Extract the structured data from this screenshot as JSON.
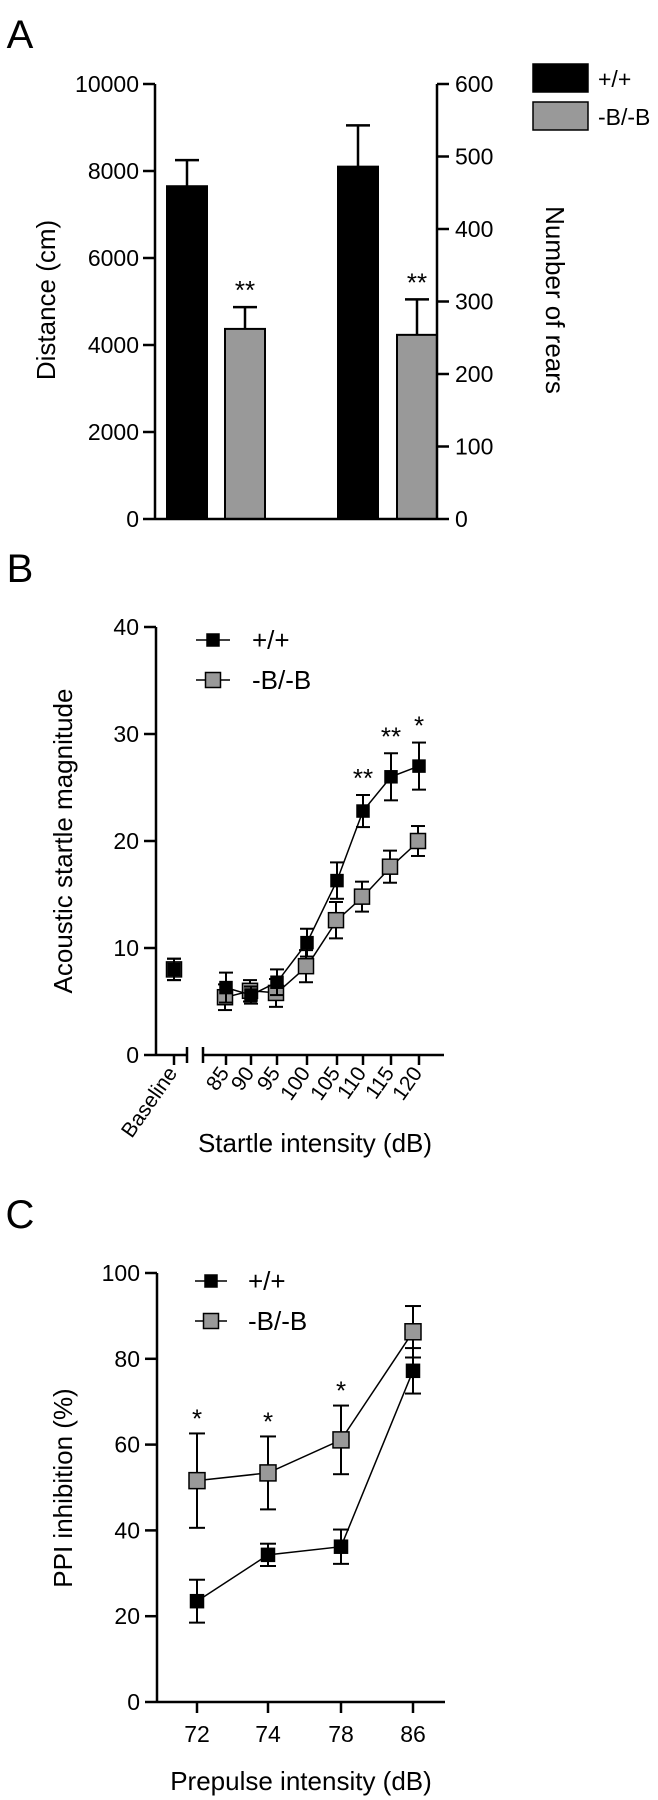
{
  "chart_data": [
    {
      "panel_label": "A",
      "type": "bar",
      "legend": [
        {
          "name": "+/+",
          "color": "#000000"
        },
        {
          "name": "-B/-B",
          "color": "#999999"
        }
      ],
      "left_axis": {
        "label": "Distance (cm)",
        "ylim": [
          0,
          10000
        ],
        "ticks": [
          "0",
          "2000",
          "4000",
          "6000",
          "8000",
          "10000"
        ]
      },
      "right_axis": {
        "label": "Number of rears",
        "ylim": [
          0,
          600
        ],
        "ticks": [
          "0",
          "100",
          "200",
          "300",
          "400",
          "500",
          "600"
        ]
      },
      "bars": [
        {
          "series": "+/+",
          "measure": "distance",
          "value": 7650,
          "error": 600,
          "sig": ""
        },
        {
          "series": "-B/-B",
          "measure": "distance",
          "value": 4370,
          "error": 500,
          "sig": "**"
        },
        {
          "series": "+/+",
          "measure": "rears",
          "value": 486,
          "error": 57,
          "sig": ""
        },
        {
          "series": "-B/-B",
          "measure": "rears",
          "value": 254,
          "error": 49,
          "sig": "**"
        }
      ]
    },
    {
      "panel_label": "B",
      "type": "line",
      "xlabel": "Startle intensity (dB)",
      "ylabel": "Acoustic startle magnitude",
      "ylim": [
        0,
        40
      ],
      "yticks": [
        "0",
        "10",
        "20",
        "30",
        "40"
      ],
      "baseline_label": "Baseline",
      "x": [
        "85",
        "90",
        "95",
        "100",
        "105",
        "110",
        "115",
        "120"
      ],
      "baseline": [
        {
          "series": "+/+",
          "value": 8.0,
          "error": 1.0
        },
        {
          "series": "-B/-B",
          "value": 8.0,
          "error": 1.0
        }
      ],
      "series": [
        {
          "name": "+/+",
          "marker": "filled-square",
          "color": "#000000",
          "values": [
            6.3,
            5.6,
            6.8,
            10.5,
            16.3,
            22.8,
            26.0,
            27.0
          ],
          "errors": [
            1.4,
            0.8,
            1.2,
            1.3,
            1.7,
            1.5,
            2.2,
            2.2
          ]
        },
        {
          "name": "-B/-B",
          "marker": "grey-square",
          "color": "#999999",
          "values": [
            5.4,
            6.0,
            5.8,
            8.3,
            12.6,
            14.8,
            17.6,
            20.0
          ],
          "errors": [
            1.2,
            1.0,
            1.3,
            1.5,
            1.7,
            1.4,
            1.5,
            1.4
          ]
        }
      ],
      "significance": [
        {
          "x": "110",
          "text": "**"
        },
        {
          "x": "115",
          "text": "**"
        },
        {
          "x": "120",
          "text": "*"
        }
      ]
    },
    {
      "panel_label": "C",
      "type": "line",
      "xlabel": "Prepulse intensity (dB)",
      "ylabel": "PPI inhibition (%)",
      "ylim": [
        0,
        100
      ],
      "yticks": [
        "0",
        "20",
        "40",
        "60",
        "80",
        "100"
      ],
      "x": [
        "72",
        "74",
        "78",
        "86"
      ],
      "series": [
        {
          "name": "+/+",
          "marker": "filled-square",
          "color": "#000000",
          "values": [
            23.5,
            34.3,
            36.2,
            77.2
          ],
          "errors": [
            5.0,
            2.6,
            4.0,
            5.3
          ]
        },
        {
          "name": "-B/-B",
          "marker": "grey-square",
          "color": "#999999",
          "values": [
            51.6,
            53.4,
            61.1,
            86.3
          ],
          "errors": [
            11.0,
            8.5,
            8.0,
            6.0
          ]
        }
      ],
      "significance": [
        {
          "x": "72",
          "text": "*"
        },
        {
          "x": "74",
          "text": "*"
        },
        {
          "x": "78",
          "text": "*"
        }
      ]
    }
  ]
}
